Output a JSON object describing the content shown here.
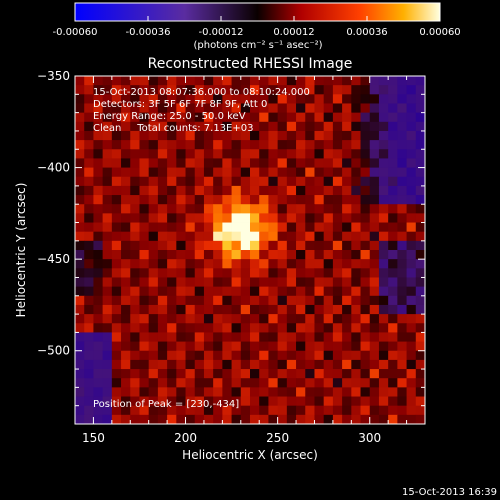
{
  "chart_data": {
    "type": "heatmap",
    "title": "Reconstructed RHESSI Image",
    "xlabel": "Heliocentric X (arcsec)",
    "ylabel": "Heliocentric Y (arcsec)",
    "xlim": [
      140,
      330
    ],
    "ylim": [
      -540,
      -350
    ],
    "x_ticks": [
      150,
      200,
      250,
      300
    ],
    "y_ticks": [
      -350,
      -400,
      -450,
      -500
    ],
    "colorbar": {
      "range": [
        -0.0006,
        0.0006
      ],
      "ticks": [
        -0.0006,
        -0.00036,
        -0.00012,
        0.00012,
        0.00036,
        0.0006
      ],
      "tick_labels": [
        "-0.00060",
        "-0.00036",
        "-0.00012",
        "0.00012",
        "0.00036",
        "0.00060"
      ],
      "unit_label": "(photons cm⁻² s⁻¹ asec⁻²)"
    },
    "annotations": [
      "15-Oct-2013 08:07:36.000 to 08:10:24.000",
      "Detectors: 3F 5F 6F 7F 8F 9F, Att 0",
      "Energy Range: 25.0 - 50.0 keV",
      "Clean     Total counts: 7.13E+03"
    ],
    "peak_label": "Position of Peak = [230,-434]",
    "peak": [
      230,
      -434
    ],
    "footer_timestamp": "15-Oct-2013 16:39"
  }
}
